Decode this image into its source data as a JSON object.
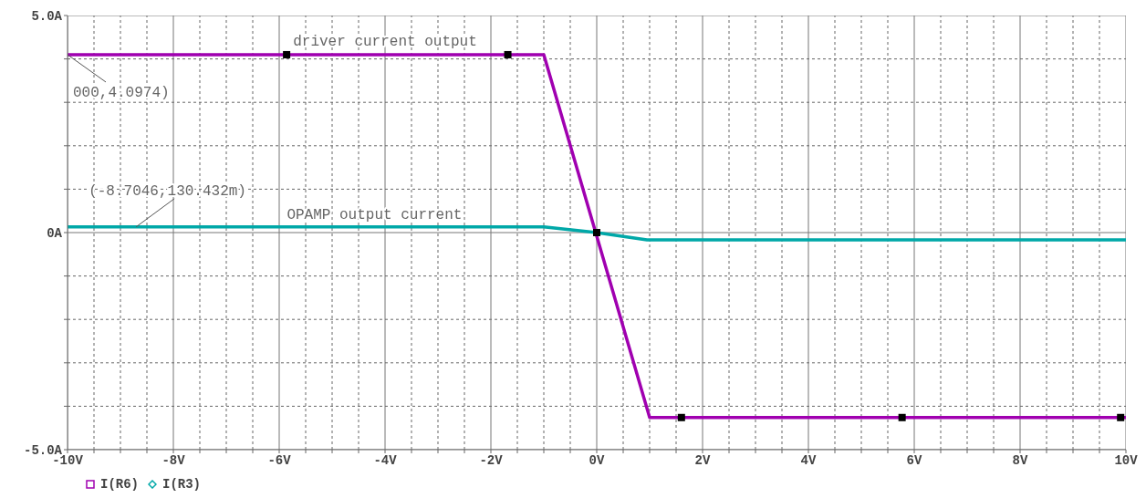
{
  "chart_data": {
    "type": "line",
    "xlim": [
      -10,
      10
    ],
    "ylim": [
      -5,
      5
    ],
    "xticks": [
      {
        "value": -10,
        "label": "-10V"
      },
      {
        "value": -9.5,
        "label": null
      },
      {
        "value": -9,
        "label": null
      },
      {
        "value": -8.5,
        "label": null
      },
      {
        "value": -8,
        "label": "-8V"
      },
      {
        "value": -7.5,
        "label": null
      },
      {
        "value": -7,
        "label": null
      },
      {
        "value": -6.5,
        "label": null
      },
      {
        "value": -6,
        "label": "-6V"
      },
      {
        "value": -5.5,
        "label": null
      },
      {
        "value": -5,
        "label": null
      },
      {
        "value": -4.5,
        "label": null
      },
      {
        "value": -4,
        "label": "-4V"
      },
      {
        "value": -3.5,
        "label": null
      },
      {
        "value": -3,
        "label": null
      },
      {
        "value": -2.5,
        "label": null
      },
      {
        "value": -2,
        "label": "-2V"
      },
      {
        "value": -1.5,
        "label": null
      },
      {
        "value": -1,
        "label": null
      },
      {
        "value": -0.5,
        "label": null
      },
      {
        "value": 0,
        "label": "0V"
      },
      {
        "value": 0.5,
        "label": null
      },
      {
        "value": 1,
        "label": null
      },
      {
        "value": 1.5,
        "label": null
      },
      {
        "value": 2,
        "label": "2V"
      },
      {
        "value": 2.5,
        "label": null
      },
      {
        "value": 3,
        "label": null
      },
      {
        "value": 3.5,
        "label": null
      },
      {
        "value": 4,
        "label": "4V"
      },
      {
        "value": 4.5,
        "label": null
      },
      {
        "value": 5,
        "label": null
      },
      {
        "value": 5.5,
        "label": null
      },
      {
        "value": 6,
        "label": "6V"
      },
      {
        "value": 6.5,
        "label": null
      },
      {
        "value": 7,
        "label": null
      },
      {
        "value": 7.5,
        "label": null
      },
      {
        "value": 8,
        "label": "8V"
      },
      {
        "value": 8.5,
        "label": null
      },
      {
        "value": 9,
        "label": null
      },
      {
        "value": 9.5,
        "label": null
      },
      {
        "value": 10,
        "label": "10V"
      }
    ],
    "yticks": [
      {
        "value": -5,
        "label": "-5.0A"
      },
      {
        "value": -4,
        "label": null
      },
      {
        "value": -3,
        "label": null
      },
      {
        "value": -2,
        "label": null
      },
      {
        "value": -1,
        "label": null
      },
      {
        "value": 0,
        "label": "0A"
      },
      {
        "value": 1,
        "label": null
      },
      {
        "value": 2,
        "label": null
      },
      {
        "value": 3,
        "label": null
      },
      {
        "value": 4,
        "label": null
      },
      {
        "value": 5,
        "label": "5.0A"
      }
    ],
    "grid": true,
    "legend": "bottom left",
    "series": [
      {
        "name": "I(R6)",
        "color": "#a000b0",
        "x": [
          -10,
          -1,
          1,
          10
        ],
        "values": [
          4.0974,
          4.0974,
          -4.26,
          -4.26
        ]
      },
      {
        "name": "I(R3)",
        "color": "#00a8a8",
        "x": [
          -10,
          -1,
          0,
          0.95,
          10
        ],
        "values": [
          0.130432,
          0.130432,
          0,
          -0.17,
          -0.17
        ]
      },
      {
        "type": "scatter",
        "color": "#000000",
        "marker": "square",
        "x": [
          -5.86,
          -1.68,
          0,
          1.6,
          5.77,
          9.9
        ],
        "values": [
          4.0974,
          4.0974,
          0,
          -4.26,
          -4.26,
          -4.26
        ]
      }
    ],
    "annotations": [
      {
        "text": "driver current output",
        "x": -4,
        "y": 4.0974
      },
      {
        "text": "000,4.0974)",
        "x": -10,
        "y": 4.0974
      },
      {
        "text": "(-8.7046,130.432m)",
        "x": -8.7046,
        "y": 0.130432
      },
      {
        "text": "OPAMP output current",
        "x": -4.2,
        "y": 0.130432
      }
    ]
  }
}
